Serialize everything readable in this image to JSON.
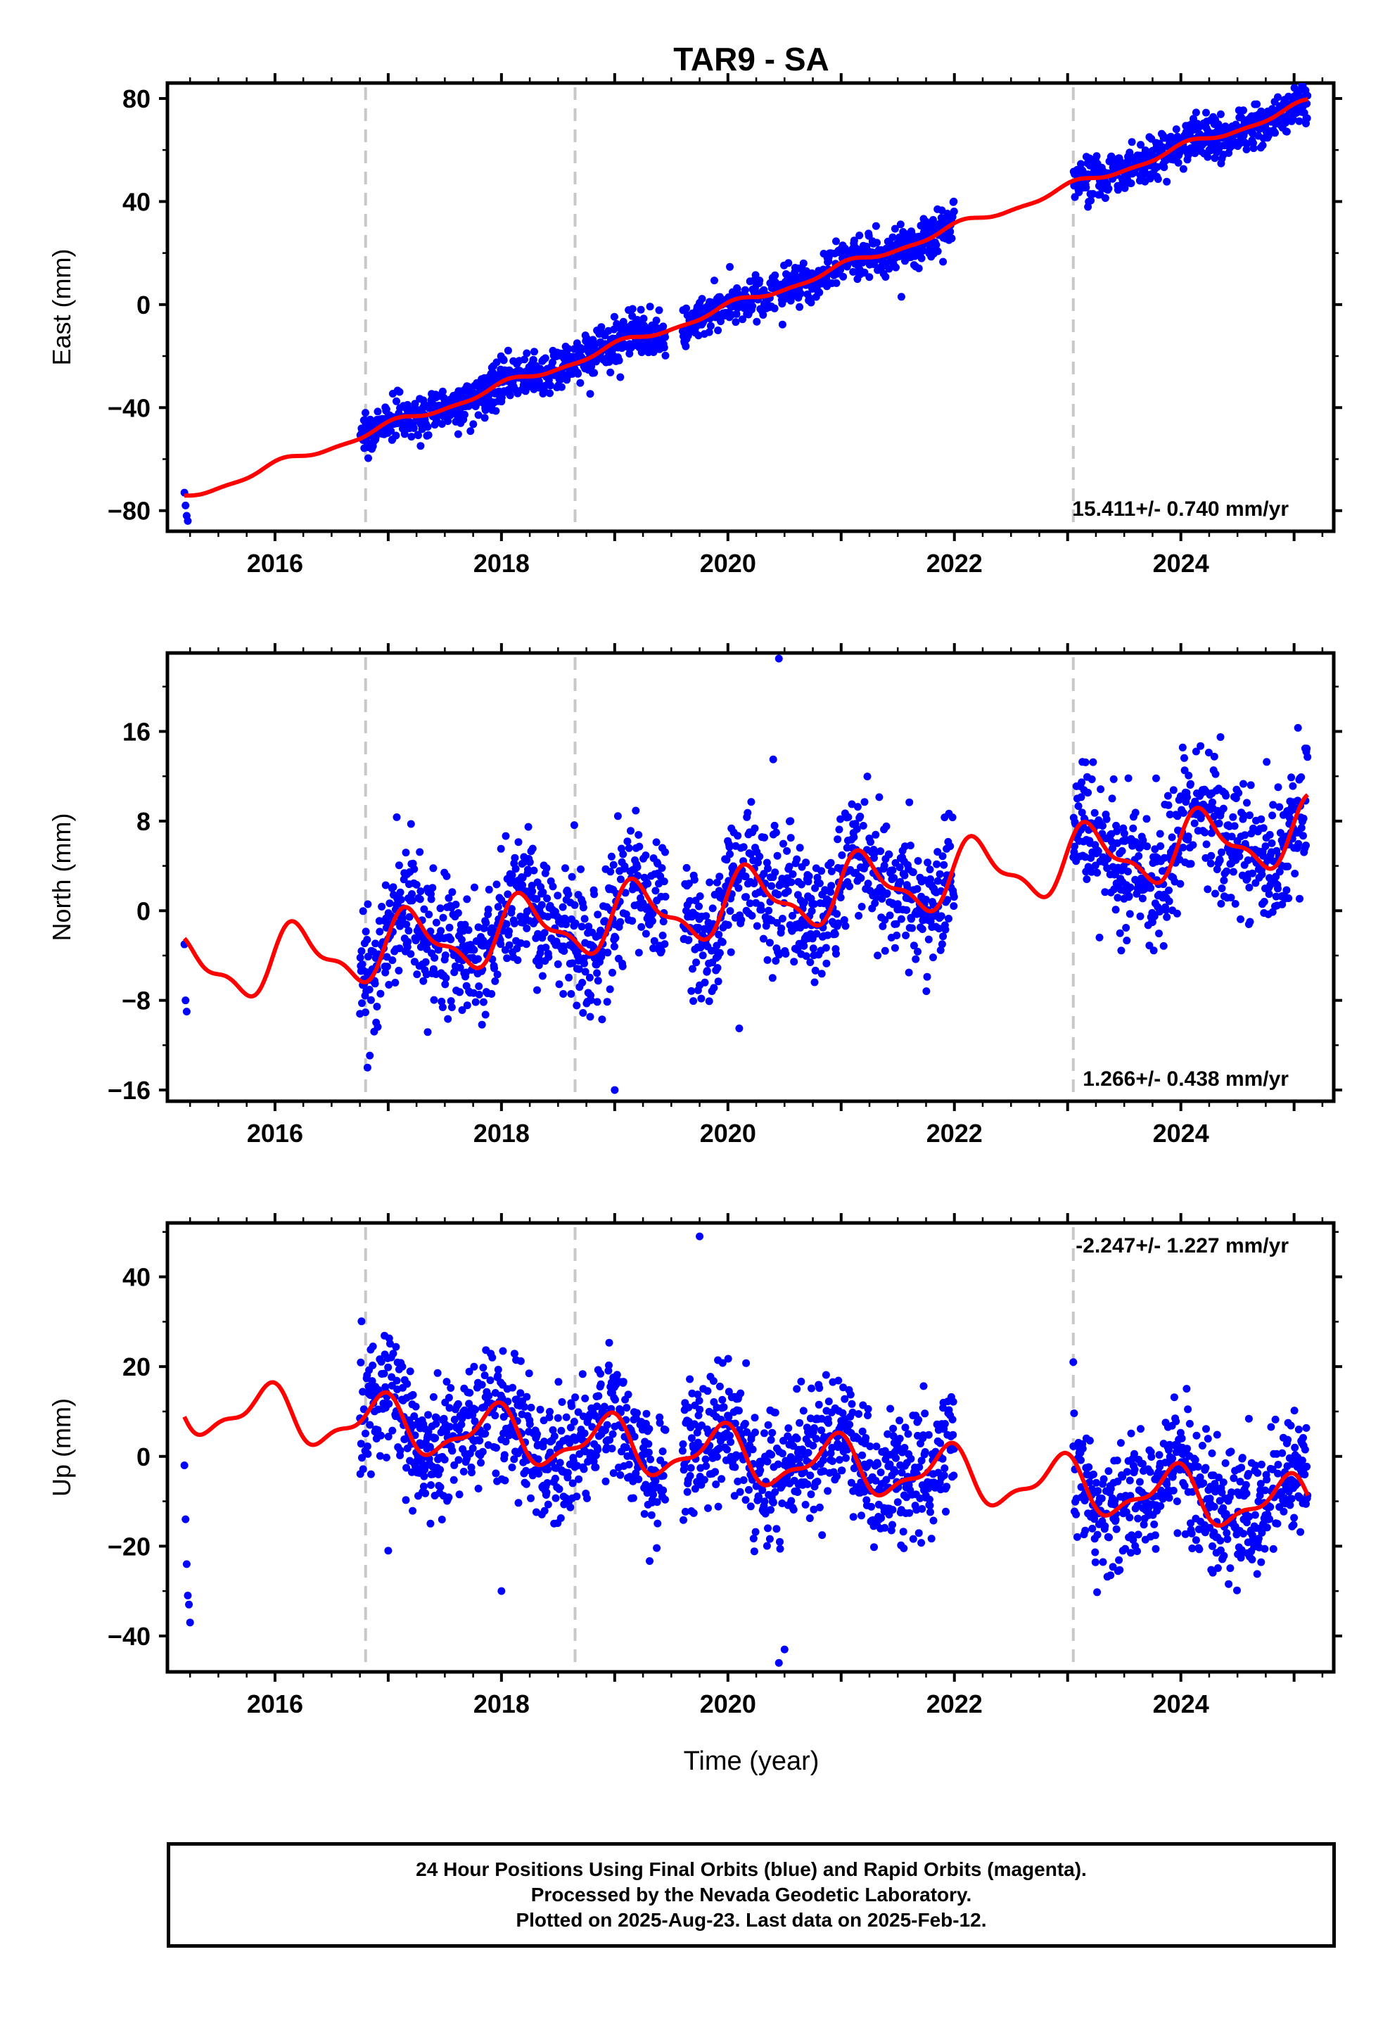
{
  "title": "TAR9 - SA",
  "xlabel": "Time (year)",
  "footer": {
    "line1": "24 Hour Positions Using Final Orbits (blue) and Rapid Orbits (magenta).",
    "line2": "Processed by the Nevada Geodetic Laboratory.",
    "line3": "Plotted on 2025-Aug-23. Last data on 2025-Feb-12."
  },
  "colors": {
    "points": "#0000ff",
    "fit": "#ff0000",
    "events": "#c8c8c8",
    "axis": "#000000"
  },
  "chart_data": [
    {
      "type": "scatter",
      "panel": "east",
      "ylabel": "East (mm)",
      "rate": "15.411+/- 0.740 mm/yr",
      "rate_position": "bottom-right",
      "xlim": [
        2015.05,
        2025.35
      ],
      "ylim": [
        -88,
        86
      ],
      "yticks": [
        -80,
        -40,
        0,
        40,
        80
      ],
      "xticks": [
        2016,
        2018,
        2020,
        2022,
        2024
      ],
      "event_lines": [
        2016.8,
        2018.65,
        2023.05
      ],
      "data_ranges": [
        [
          2016.75,
          2019.45
        ],
        [
          2019.6,
          2022.0
        ],
        [
          2023.05,
          2025.12
        ]
      ],
      "early_points": [
        [
          2015.2,
          -73
        ],
        [
          2015.21,
          -78
        ],
        [
          2015.22,
          -82
        ],
        [
          2015.23,
          -84
        ]
      ],
      "fit": {
        "base": 15.411,
        "y0": -75,
        "x0": 2015.2,
        "amp": 1.5,
        "phase": 1.2,
        "offsets": []
      },
      "noise": 4.2
    },
    {
      "type": "scatter",
      "panel": "north",
      "ylabel": "North (mm)",
      "rate": "1.266+/- 0.438 mm/yr",
      "rate_position": "bottom-right",
      "xlim": [
        2015.05,
        2025.35
      ],
      "ylim": [
        -17,
        23
      ],
      "yticks": [
        -16,
        -8,
        0,
        8,
        16
      ],
      "xticks": [
        2016,
        2018,
        2020,
        2022,
        2024
      ],
      "event_lines": [
        2016.8,
        2018.65,
        2023.05
      ],
      "data_ranges": [
        [
          2016.75,
          2019.45
        ],
        [
          2019.6,
          2022.0
        ],
        [
          2023.05,
          2025.12
        ]
      ],
      "early_points": [
        [
          2015.2,
          -3
        ],
        [
          2015.21,
          -8
        ],
        [
          2015.22,
          -9
        ]
      ],
      "fit": {
        "base": 1.266,
        "y0": -5.5,
        "x0": 2015.2,
        "amp": 2.6,
        "phase": 0.3,
        "offsets": []
      },
      "noise": 2.9,
      "outliers": [
        [
          2020.45,
          22.5
        ],
        [
          2020.4,
          13.5
        ],
        [
          2024.35,
          15.5
        ],
        [
          2019.0,
          -16
        ],
        [
          2020.1,
          -10.5
        ]
      ]
    },
    {
      "type": "scatter",
      "panel": "up",
      "ylabel": "Up (mm)",
      "rate": "-2.247+/- 1.227 mm/yr",
      "rate_position": "top-right",
      "xlim": [
        2015.05,
        2025.35
      ],
      "ylim": [
        -48,
        52
      ],
      "yticks": [
        -40,
        -20,
        0,
        20,
        40
      ],
      "xticks": [
        2016,
        2018,
        2020,
        2022,
        2024
      ],
      "event_lines": [
        2016.8,
        2018.65,
        2023.05
      ],
      "data_ranges": [
        [
          2016.75,
          2019.45
        ],
        [
          2019.6,
          2022.0
        ],
        [
          2023.05,
          2025.12
        ]
      ],
      "early_points": [
        [
          2015.2,
          -2
        ],
        [
          2015.21,
          -14
        ],
        [
          2015.22,
          -24
        ],
        [
          2015.23,
          -31
        ],
        [
          2015.24,
          -33
        ],
        [
          2015.25,
          -37
        ]
      ],
      "fit": {
        "base": -2.247,
        "y0": 11,
        "x0": 2015.2,
        "amp": 5.5,
        "phase": 2.0,
        "offsets": []
      },
      "noise": 7.0,
      "outliers": [
        [
          2019.75,
          49
        ],
        [
          2020.45,
          -46
        ],
        [
          2020.5,
          -43
        ],
        [
          2017.0,
          -21
        ],
        [
          2018.0,
          -30
        ],
        [
          2023.05,
          21
        ]
      ]
    }
  ]
}
